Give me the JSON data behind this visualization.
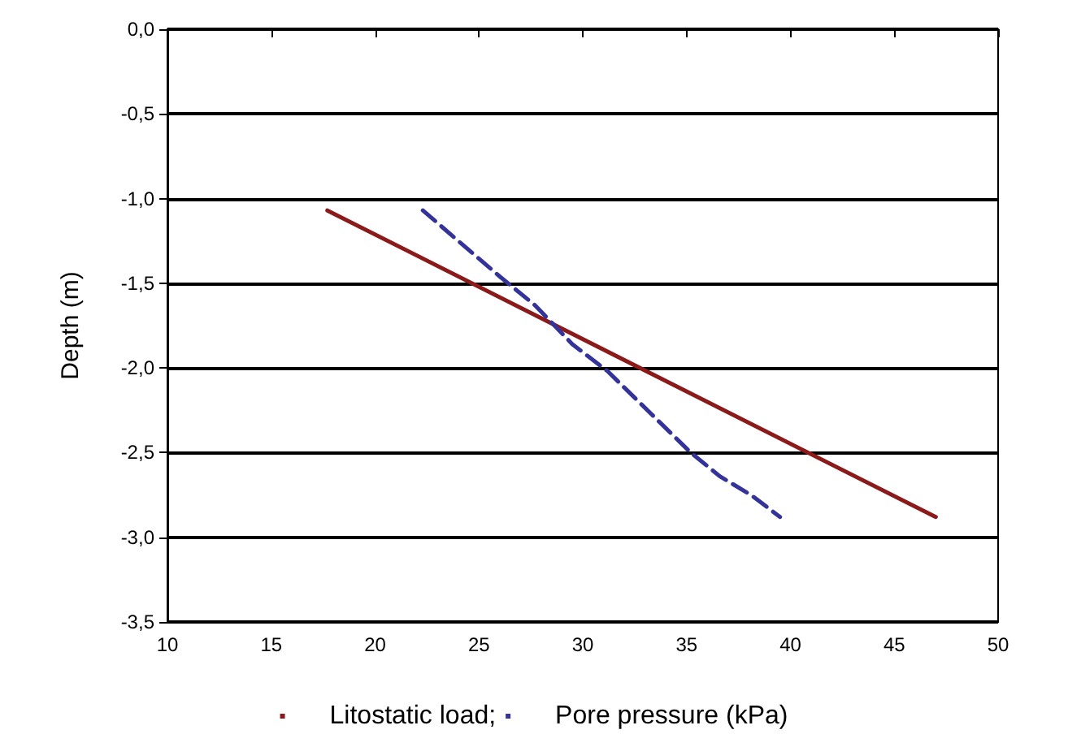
{
  "chart_data": {
    "type": "line",
    "ylabel": "Depth (m)",
    "xlim": [
      10,
      50
    ],
    "xticks": [
      10,
      15,
      20,
      25,
      30,
      35,
      40,
      45,
      50
    ],
    "ylim": [
      -3.5,
      0
    ],
    "yticks": [
      {
        "value": -3.5,
        "label": "-3,5"
      },
      {
        "value": -3,
        "label": "-3,0"
      },
      {
        "value": -2.5,
        "label": "-2,5"
      },
      {
        "value": -2,
        "label": "-2,0"
      },
      {
        "value": -1.5,
        "label": "-1,5"
      },
      {
        "value": -1,
        "label": "-1,0"
      },
      {
        "value": -0.5,
        "label": "-0,5"
      },
      {
        "value": 0,
        "label": "0,0"
      }
    ],
    "grid": "y",
    "legend": "bottom",
    "marker": "none",
    "series": [
      {
        "name": "Litostatic load;",
        "color": "#8b1a1a",
        "line_style": "solid",
        "x": [
          17.7,
          47
        ],
        "values": [
          -1.07,
          -2.88
        ]
      },
      {
        "name": "Pore pressure (kPa)",
        "color": "#333399",
        "line_style": "dashed",
        "x": [
          22.3,
          26.0,
          27.7,
          29.5,
          31.2,
          35.2,
          36.6,
          38.1,
          39.5
        ],
        "values": [
          -1.07,
          -1.46,
          -1.63,
          -1.86,
          -2.02,
          -2.5,
          -2.64,
          -2.75,
          -2.88
        ]
      }
    ]
  }
}
